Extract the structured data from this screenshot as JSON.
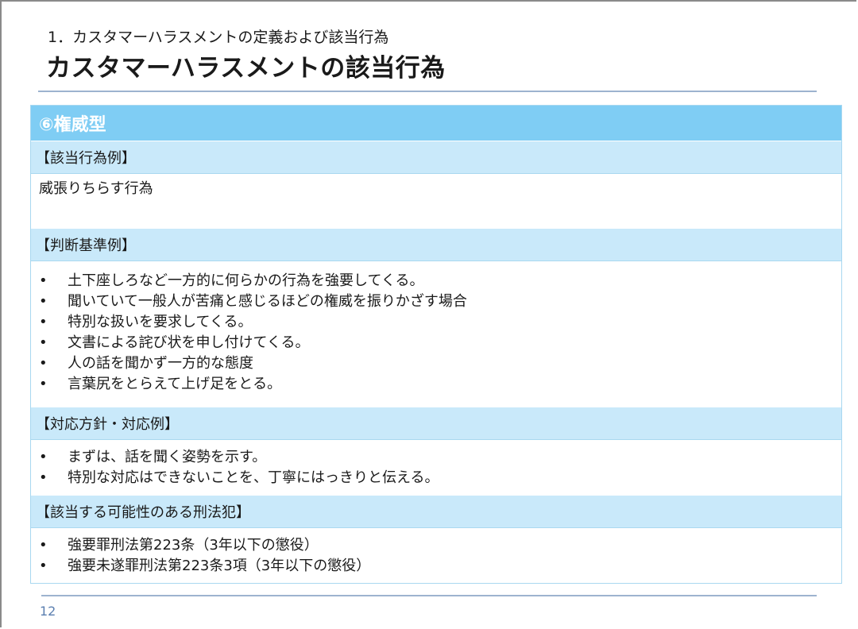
{
  "slide": {
    "subtitle": "1．カスタマーハラスメントの定義および該当行為",
    "title": "カスタマーハラスメントの該当行為",
    "page_number": "12"
  },
  "table": {
    "header": "⑥権威型",
    "sections": [
      {
        "label": "【該当行為例】",
        "text": "威張りちらす行為"
      },
      {
        "label": "【判断基準例】",
        "items": [
          "土下座しろなど一方的に何らかの行為を強要してくる。",
          "聞いていて一般人が苦痛と感じるほどの権威を振りかざす場合",
          "特別な扱いを要求してくる。",
          "文書による詫び状を申し付けてくる。",
          "人の話を聞かず一方的な態度",
          "言葉尻をとらえて上げ足をとる。"
        ]
      },
      {
        "label": "【対応方針・対応例】",
        "items": [
          "まずは、話を聞く姿勢を示す。",
          "特別な対応はできないことを、丁寧にはっきりと伝える。"
        ]
      },
      {
        "label": "【該当する可能性のある刑法犯】",
        "items": [
          "強要罪刑法第223条（3年以下の懲役）",
          "強要未遂罪刑法第223条3項（3年以下の懲役）"
        ]
      }
    ]
  },
  "colors": {
    "header_bg": "#7fcdf4",
    "section_bg": "#c9e9fa",
    "rule": "#9db3cf",
    "page_number": "#5b7fb0"
  }
}
